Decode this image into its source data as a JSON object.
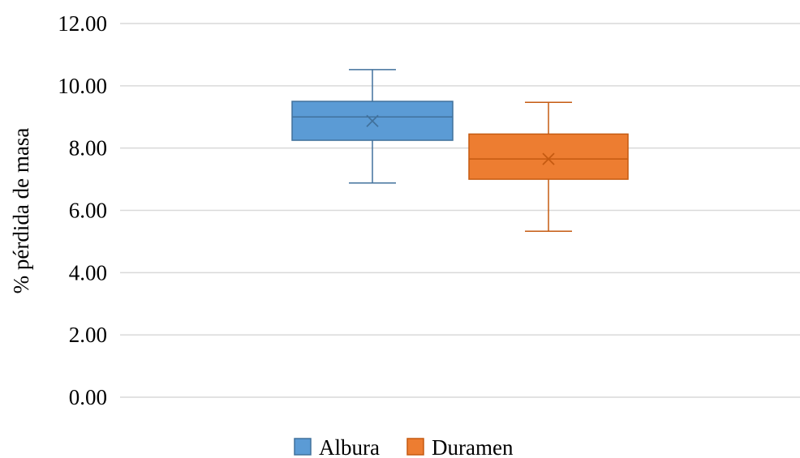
{
  "chart_data": {
    "type": "box",
    "title": "",
    "xlabel": "",
    "ylabel": "% pérdida de masa",
    "ylim": [
      0,
      12
    ],
    "yticks": [
      "0.00",
      "2.00",
      "4.00",
      "6.00",
      "8.00",
      "10.00",
      "12.00"
    ],
    "grid": true,
    "legend_position": "bottom",
    "series": [
      {
        "name": "Albura",
        "color": "#5b9bd5",
        "edge": "#41719c",
        "min": 6.88,
        "q1": 8.25,
        "median": 9.0,
        "q3": 9.5,
        "max": 10.52,
        "mean": 8.87
      },
      {
        "name": "Duramen",
        "color": "#ed7d31",
        "edge": "#c55a11",
        "min": 5.33,
        "q1": 7.0,
        "median": 7.65,
        "q3": 8.45,
        "max": 9.47,
        "mean": 7.65
      }
    ]
  }
}
